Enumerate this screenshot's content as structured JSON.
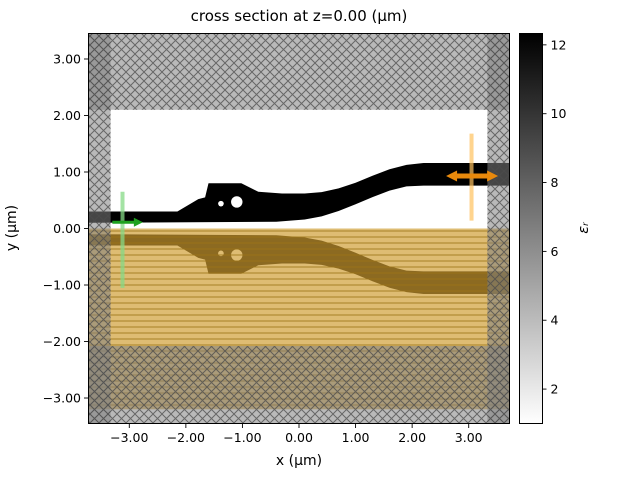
{
  "figure": {
    "title": "cross section at z=0.00 (μm)",
    "xlabel": "x (μm)",
    "ylabel": "y (μm)"
  },
  "chart_data": {
    "type": "heatmap",
    "title": "cross section at z=0.00 (μm)",
    "xlabel": "x (μm)",
    "ylabel": "y (μm)",
    "xlim": [
      -3.73,
      3.73
    ],
    "ylim": [
      -3.46,
      3.46
    ],
    "grid": false,
    "x_ticks": [
      -3,
      -2,
      -1,
      0,
      1,
      2,
      3
    ],
    "x_tick_labels": [
      "−3.00",
      "−2.00",
      "−1.00",
      "0.00",
      "1.00",
      "2.00",
      "3.00"
    ],
    "y_ticks": [
      3,
      2,
      1,
      0,
      -1,
      -2,
      -3
    ],
    "y_tick_labels": [
      "3.00",
      "2.00",
      "1.00",
      "0.00",
      "−1.00",
      "−2.00",
      "−3.00"
    ],
    "colorbar": {
      "label": "εᵣ",
      "ticks": [
        2,
        4,
        6,
        8,
        10,
        12
      ],
      "tick_labels": [
        "2",
        "4",
        "6",
        "8",
        "10",
        "12"
      ],
      "vmin": 1.0,
      "vmax": 12.33,
      "cmap": "grayscale: white = low permittivity (air, εᵣ≈1), black = high permittivity (εᵣ≈12)"
    },
    "materials": {
      "background_eps": 1.0,
      "waveguide_eps": 12.1
    },
    "waveguide": {
      "color": "#000000",
      "mirror_about_y0": true,
      "outline": [
        [
          -3.73,
          0.3
        ],
        [
          -2.15,
          0.3
        ],
        [
          -1.78,
          0.52
        ],
        [
          -1.66,
          0.55
        ],
        [
          -1.6,
          0.8
        ],
        [
          -1.02,
          0.8
        ],
        [
          -0.72,
          0.65
        ],
        [
          -0.3,
          0.62
        ],
        [
          0.1,
          0.62
        ],
        [
          0.4,
          0.645
        ],
        [
          0.7,
          0.71
        ],
        [
          1.0,
          0.81
        ],
        [
          1.3,
          0.935
        ],
        [
          1.6,
          1.05
        ],
        [
          1.9,
          1.125
        ],
        [
          2.2,
          1.16
        ],
        [
          3.73,
          1.16
        ],
        [
          3.73,
          0.76
        ],
        [
          2.2,
          0.76
        ],
        [
          1.9,
          0.745
        ],
        [
          1.6,
          0.67
        ],
        [
          1.3,
          0.555
        ],
        [
          1.0,
          0.43
        ],
        [
          0.7,
          0.31
        ],
        [
          0.4,
          0.215
        ],
        [
          0.1,
          0.16
        ],
        [
          -0.4,
          0.12
        ],
        [
          -3.73,
          0.1
        ]
      ],
      "holes": [
        {
          "cx": -1.38,
          "cy": 0.44,
          "r": 0.05
        },
        {
          "cx": -1.1,
          "cy": 0.47,
          "r": 0.1
        }
      ]
    },
    "overlays": {
      "pml": {
        "name": "absorbing boundary layer (PML)",
        "color": "#808080",
        "fill_opacity": 0.55,
        "hatch": "xx",
        "hatch_color": "#4a4a4a",
        "bands": [
          {
            "x0": -3.73,
            "x1": 3.73,
            "y0": 2.1,
            "y1": 3.46
          },
          {
            "x0": -3.73,
            "x1": 3.73,
            "y0": -3.46,
            "y1": -2.08
          },
          {
            "x0": -3.73,
            "x1": -3.33,
            "y0": -3.46,
            "y1": 3.46
          },
          {
            "x0": 3.33,
            "x1": 3.73,
            "y0": -3.46,
            "y1": 3.46
          }
        ]
      },
      "substrate": {
        "name": "substrate / flux region",
        "color": "#CE9C30",
        "fill_opacity": 0.68,
        "hatch": "-",
        "hatch_color": "#9C7418",
        "rects": [
          {
            "x0": -3.73,
            "x1": 3.73,
            "y0": -2.08,
            "y1": 0.0
          },
          {
            "x0": -3.73,
            "x1": 3.73,
            "y0": -3.2,
            "y1": -2.08
          }
        ]
      }
    },
    "annotations": {
      "source": {
        "line": {
          "x": -3.12,
          "y0": -1.05,
          "y1": 0.65,
          "color": "#86D986",
          "opacity": 0.75,
          "width": 4
        },
        "arrow": {
          "y": 0.11,
          "x0": -3.3,
          "x1": -2.76,
          "color": "#1FA11F",
          "width": 3,
          "head": 9,
          "double": false
        }
      },
      "monitor": {
        "line": {
          "x": 3.05,
          "y0": 0.14,
          "y1": 1.68,
          "color": "#FFC25E",
          "opacity": 0.7,
          "width": 4
        },
        "arrow": {
          "y": 0.93,
          "x0": 2.6,
          "x1": 3.52,
          "color": "#E8890C",
          "width": 5,
          "head": 11,
          "double": true
        }
      }
    }
  }
}
